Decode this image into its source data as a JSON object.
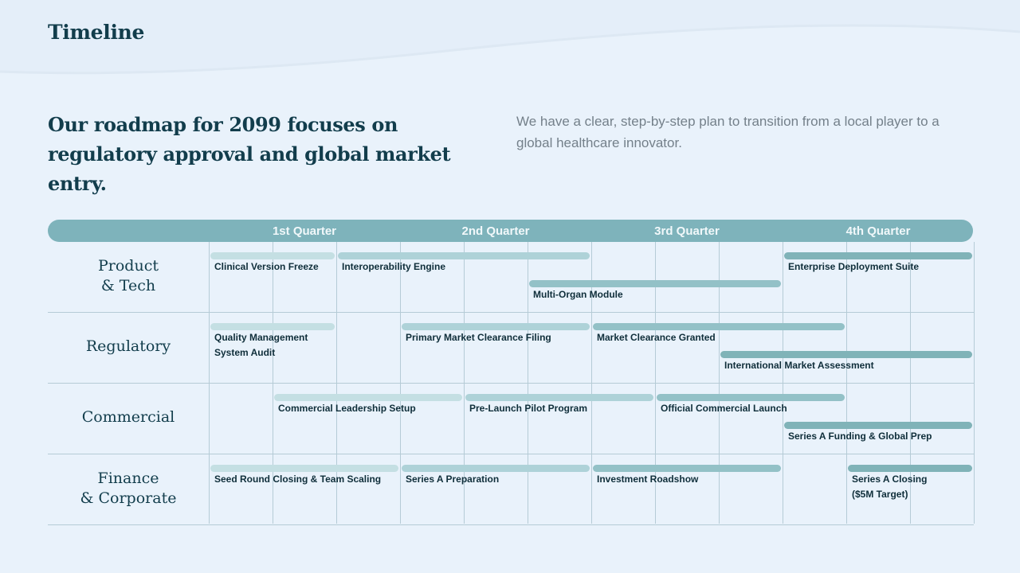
{
  "page_label": "Timeline",
  "headline": "Our roadmap for 2099 focuses on regulatory approval and global market entry.",
  "subtext": "We have a clear, step-by-step plan to transition from a local player to a global healthcare innovator.",
  "quarters": [
    "1st Quarter",
    "2nd Quarter",
    "3rd Quarter",
    "4th Quarter"
  ],
  "rows": [
    {
      "label_lines": [
        "Product",
        "& Tech"
      ],
      "tasks": [
        {
          "label": "Clinical Version Freeze",
          "start": 0,
          "end": 2,
          "lane": 0,
          "shade": "c1"
        },
        {
          "label": "Interoperability Engine",
          "start": 2,
          "end": 6,
          "lane": 0,
          "shade": "c2"
        },
        {
          "label": "Multi-Organ Module",
          "start": 5,
          "end": 9,
          "lane": 1,
          "shade": "c3"
        },
        {
          "label": "Enterprise Deployment Suite",
          "start": 9,
          "end": 12,
          "lane": 0,
          "shade": "c4"
        }
      ]
    },
    {
      "label_lines": [
        "Regulatory"
      ],
      "tasks": [
        {
          "label": "Quality Management",
          "label2": "System Audit",
          "start": 0,
          "end": 2,
          "lane": 0,
          "shade": "c1"
        },
        {
          "label": "Primary Market Clearance Filing",
          "start": 3,
          "end": 6,
          "lane": 0,
          "shade": "c2"
        },
        {
          "label": "Market Clearance Granted",
          "start": 6,
          "end": 10,
          "lane": 0,
          "shade": "c3"
        },
        {
          "label": "International Market Assessment",
          "start": 8,
          "end": 12,
          "lane": 1,
          "shade": "c4"
        }
      ]
    },
    {
      "label_lines": [
        "Commercial"
      ],
      "tasks": [
        {
          "label": "Commercial Leadership Setup",
          "start": 1,
          "end": 4,
          "lane": 0,
          "shade": "c1"
        },
        {
          "label": "Pre-Launch Pilot Program",
          "start": 4,
          "end": 7,
          "lane": 0,
          "shade": "c2"
        },
        {
          "label": "Official Commercial Launch",
          "start": 7,
          "end": 10,
          "lane": 0,
          "shade": "c3"
        },
        {
          "label": "Series A Funding & Global Prep",
          "start": 9,
          "end": 12,
          "lane": 1,
          "shade": "c4"
        }
      ]
    },
    {
      "label_lines": [
        "Finance",
        "& Corporate"
      ],
      "tasks": [
        {
          "label": "Seed Round Closing & Team Scaling",
          "start": 0,
          "end": 3,
          "lane": 0,
          "shade": "c1"
        },
        {
          "label": "Series A Preparation",
          "start": 3,
          "end": 6,
          "lane": 0,
          "shade": "c2"
        },
        {
          "label": "Investment Roadshow",
          "start": 6,
          "end": 9,
          "lane": 0,
          "shade": "c3"
        },
        {
          "label": "Series A Closing",
          "label2": "($5M Target)",
          "start": 10,
          "end": 12,
          "lane": 0,
          "shade": "c4"
        }
      ]
    }
  ]
}
